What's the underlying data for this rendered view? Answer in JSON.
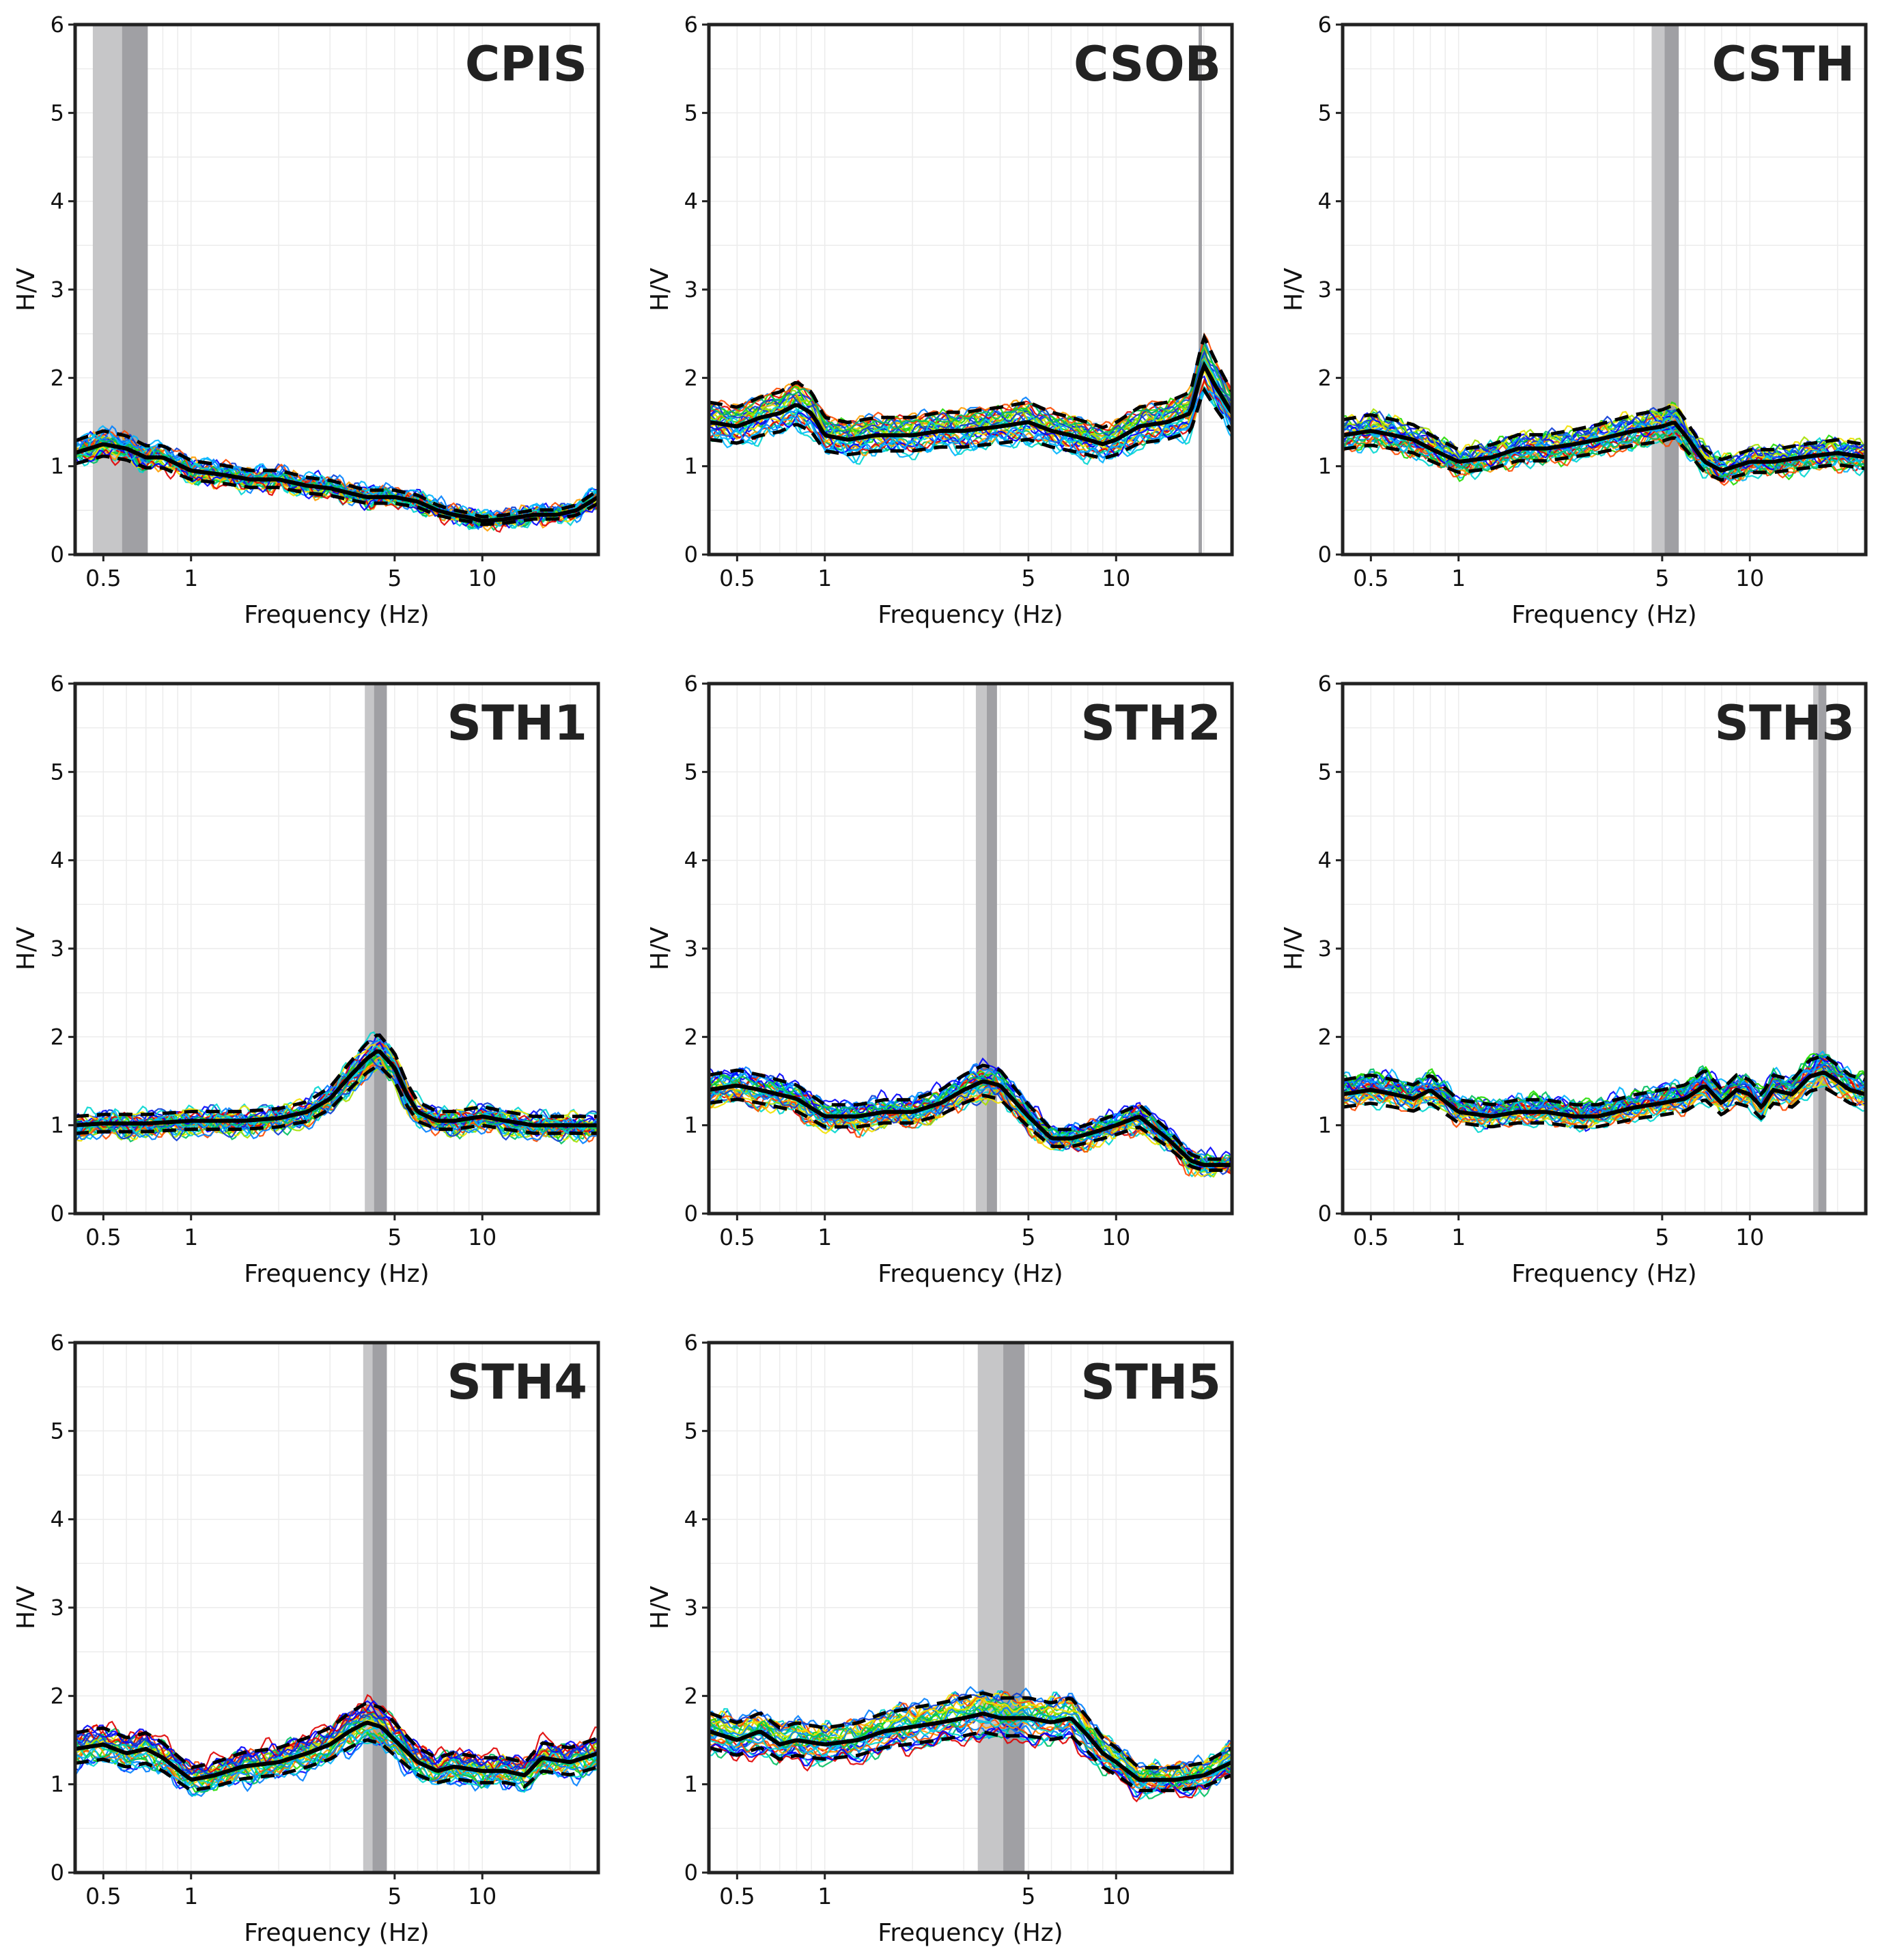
{
  "figure": {
    "colors": {
      "mean": "#000000",
      "std": "#000000",
      "band_outer": "#c6c6c8",
      "band_inner": "#a0a0a4",
      "frame": "#222222",
      "grid": "#ececec"
    },
    "window_palette": [
      "#0000ff",
      "#0b3bd6",
      "#0080ff",
      "#00b4ff",
      "#00d6d0",
      "#00c060",
      "#22dd00",
      "#a6e000",
      "#f2e100",
      "#ff9c00",
      "#ff4a00",
      "#e00000"
    ]
  },
  "chart_data": [
    {
      "type": "line",
      "title": "CPIS",
      "xlabel": "Frequency (Hz)",
      "ylabel": "H/V",
      "xscale": "log",
      "xlim": [
        0.4,
        25
      ],
      "ylim": [
        0,
        6
      ],
      "xticks": [
        0.5,
        1,
        5,
        10
      ],
      "xtick_labels": [
        "0.5",
        "1",
        "5",
        "10"
      ],
      "yticks": [
        0,
        1,
        2,
        3,
        4,
        5,
        6
      ],
      "ytick_labels": [
        "0",
        "1",
        "2",
        "3",
        "4",
        "5",
        "6"
      ],
      "peak_band": {
        "outer": [
          0.46,
          0.71
        ],
        "inner": [
          0.58,
          0.71
        ]
      },
      "mean_curve": {
        "f": [
          0.4,
          0.5,
          0.6,
          0.7,
          0.8,
          1.0,
          1.3,
          1.6,
          2.0,
          2.5,
          3.0,
          4.0,
          5.0,
          6.0,
          7.0,
          8.0,
          9.0,
          10.0,
          12.0,
          15.0,
          18.0,
          21.0,
          25.0
        ],
        "hv": [
          1.15,
          1.25,
          1.2,
          1.1,
          1.1,
          0.95,
          0.9,
          0.85,
          0.85,
          0.78,
          0.75,
          0.65,
          0.65,
          0.6,
          0.5,
          0.45,
          0.42,
          0.38,
          0.4,
          0.45,
          0.45,
          0.5,
          0.65
        ]
      },
      "std_factor": 1.12,
      "window_spread": 0.12,
      "window_count": 30
    },
    {
      "type": "line",
      "title": "CSOB",
      "xlabel": "Frequency (Hz)",
      "ylabel": "H/V",
      "xscale": "log",
      "xlim": [
        0.4,
        25
      ],
      "ylim": [
        0,
        6
      ],
      "xticks": [
        0.5,
        1,
        5,
        10
      ],
      "xtick_labels": [
        "0.5",
        "1",
        "5",
        "10"
      ],
      "yticks": [
        0,
        1,
        2,
        3,
        4,
        5,
        6
      ],
      "ytick_labels": [
        "0",
        "1",
        "2",
        "3",
        "4",
        "5",
        "6"
      ],
      "peak_band": {
        "outer": [
          19.2,
          19.7
        ],
        "inner": [
          19.2,
          19.7
        ]
      },
      "mean_curve": {
        "f": [
          0.4,
          0.5,
          0.6,
          0.7,
          0.8,
          0.9,
          1.0,
          1.2,
          1.5,
          2.0,
          2.5,
          3.0,
          4.0,
          5.0,
          6.0,
          7.0,
          8.0,
          9.0,
          10.0,
          12.0,
          15.0,
          18.0,
          20.0,
          22.0,
          25.0
        ],
        "hv": [
          1.5,
          1.45,
          1.55,
          1.6,
          1.7,
          1.6,
          1.35,
          1.3,
          1.35,
          1.35,
          1.4,
          1.4,
          1.45,
          1.5,
          1.4,
          1.35,
          1.3,
          1.25,
          1.3,
          1.45,
          1.5,
          1.6,
          2.15,
          1.9,
          1.6
        ]
      },
      "std_factor": 1.15,
      "window_spread": 0.17,
      "window_count": 30
    },
    {
      "type": "line",
      "title": "CSTH",
      "xlabel": "Frequency (Hz)",
      "ylabel": "H/V",
      "xscale": "log",
      "xlim": [
        0.4,
        25
      ],
      "ylim": [
        0,
        6
      ],
      "xticks": [
        0.5,
        1,
        5,
        10
      ],
      "xtick_labels": [
        "0.5",
        "1",
        "5",
        "10"
      ],
      "yticks": [
        0,
        1,
        2,
        3,
        4,
        5,
        6
      ],
      "ytick_labels": [
        "0",
        "1",
        "2",
        "3",
        "4",
        "5",
        "6"
      ],
      "peak_band": {
        "outer": [
          4.6,
          5.7
        ],
        "inner": [
          5.1,
          5.7
        ]
      },
      "mean_curve": {
        "f": [
          0.4,
          0.5,
          0.6,
          0.7,
          0.8,
          1.0,
          1.3,
          1.6,
          2.0,
          2.5,
          3.0,
          4.0,
          5.0,
          5.5,
          6.0,
          7.0,
          8.0,
          10.0,
          12.0,
          15.0,
          20.0,
          25.0
        ],
        "hv": [
          1.35,
          1.4,
          1.35,
          1.3,
          1.2,
          1.05,
          1.1,
          1.2,
          1.2,
          1.25,
          1.3,
          1.4,
          1.45,
          1.5,
          1.35,
          1.05,
          0.95,
          1.05,
          1.05,
          1.1,
          1.15,
          1.1
        ]
      },
      "std_factor": 1.13,
      "window_spread": 0.14,
      "window_count": 30
    },
    {
      "type": "line",
      "title": "STH1",
      "xlabel": "Frequency (Hz)",
      "ylabel": "H/V",
      "xscale": "log",
      "xlim": [
        0.4,
        25
      ],
      "ylim": [
        0,
        6
      ],
      "xticks": [
        0.5,
        1,
        5,
        10
      ],
      "xtick_labels": [
        "0.5",
        "1",
        "5",
        "10"
      ],
      "yticks": [
        0,
        1,
        2,
        3,
        4,
        5,
        6
      ],
      "ytick_labels": [
        "0",
        "1",
        "2",
        "3",
        "4",
        "5",
        "6"
      ],
      "peak_band": {
        "outer": [
          3.95,
          4.7
        ],
        "inner": [
          4.25,
          4.7
        ]
      },
      "mean_curve": {
        "f": [
          0.4,
          0.5,
          0.7,
          1.0,
          1.5,
          2.0,
          2.5,
          3.0,
          3.5,
          4.0,
          4.4,
          5.0,
          5.5,
          6.0,
          7.0,
          8.0,
          10.0,
          12.0,
          15.0,
          20.0,
          25.0
        ],
        "hv": [
          1.0,
          1.02,
          1.02,
          1.05,
          1.05,
          1.08,
          1.15,
          1.3,
          1.55,
          1.75,
          1.85,
          1.65,
          1.35,
          1.15,
          1.05,
          1.05,
          1.1,
          1.05,
          1.0,
          1.0,
          1.0
        ]
      },
      "std_factor": 1.1,
      "window_spread": 0.12,
      "window_count": 30
    },
    {
      "type": "line",
      "title": "STH2",
      "xlabel": "Frequency (Hz)",
      "ylabel": "H/V",
      "xscale": "log",
      "xlim": [
        0.4,
        25
      ],
      "ylim": [
        0,
        6
      ],
      "xticks": [
        0.5,
        1,
        5,
        10
      ],
      "xtick_labels": [
        "0.5",
        "1",
        "5",
        "10"
      ],
      "yticks": [
        0,
        1,
        2,
        3,
        4,
        5,
        6
      ],
      "ytick_labels": [
        "0",
        "1",
        "2",
        "3",
        "4",
        "5",
        "6"
      ],
      "peak_band": {
        "outer": [
          3.3,
          3.9
        ],
        "inner": [
          3.6,
          3.9
        ]
      },
      "mean_curve": {
        "f": [
          0.4,
          0.5,
          0.6,
          0.8,
          1.0,
          1.3,
          1.6,
          2.0,
          2.5,
          3.0,
          3.5,
          4.0,
          5.0,
          6.0,
          7.0,
          8.0,
          10.0,
          12.0,
          15.0,
          18.0,
          20.0,
          25.0
        ],
        "hv": [
          1.4,
          1.45,
          1.4,
          1.3,
          1.1,
          1.1,
          1.15,
          1.15,
          1.25,
          1.4,
          1.5,
          1.45,
          1.1,
          0.85,
          0.85,
          0.9,
          1.0,
          1.1,
          0.85,
          0.6,
          0.55,
          0.55
        ]
      },
      "std_factor": 1.12,
      "window_spread": 0.14,
      "window_count": 30
    },
    {
      "type": "line",
      "title": "STH3",
      "xlabel": "Frequency (Hz)",
      "ylabel": "H/V",
      "xscale": "log",
      "xlim": [
        0.4,
        25
      ],
      "ylim": [
        0,
        6
      ],
      "xticks": [
        0.5,
        1,
        5,
        10
      ],
      "xtick_labels": [
        "0.5",
        "1",
        "5",
        "10"
      ],
      "yticks": [
        0,
        1,
        2,
        3,
        4,
        5,
        6
      ],
      "ytick_labels": [
        "0",
        "1",
        "2",
        "3",
        "4",
        "5",
        "6"
      ],
      "peak_band": {
        "outer": [
          16.5,
          18.3
        ],
        "inner": [
          17.2,
          18.3
        ]
      },
      "mean_curve": {
        "f": [
          0.4,
          0.5,
          0.6,
          0.7,
          0.8,
          1.0,
          1.3,
          1.6,
          2.0,
          2.5,
          3.0,
          4.0,
          5.0,
          6.0,
          7.0,
          8.0,
          9.0,
          10.0,
          11.0,
          12.0,
          14.0,
          16.0,
          18.0,
          20.0,
          22.0,
          25.0
        ],
        "hv": [
          1.35,
          1.4,
          1.35,
          1.3,
          1.4,
          1.15,
          1.1,
          1.15,
          1.15,
          1.1,
          1.1,
          1.2,
          1.25,
          1.3,
          1.45,
          1.25,
          1.4,
          1.35,
          1.2,
          1.4,
          1.35,
          1.55,
          1.6,
          1.5,
          1.4,
          1.35
        ]
      },
      "std_factor": 1.12,
      "window_spread": 0.13,
      "window_count": 30
    },
    {
      "type": "line",
      "title": "STH4",
      "xlabel": "Frequency (Hz)",
      "ylabel": "H/V",
      "xscale": "log",
      "xlim": [
        0.4,
        25
      ],
      "ylim": [
        0,
        6
      ],
      "xticks": [
        0.5,
        1,
        5,
        10
      ],
      "xtick_labels": [
        "0.5",
        "1",
        "5",
        "10"
      ],
      "yticks": [
        0,
        1,
        2,
        3,
        4,
        5,
        6
      ],
      "ytick_labels": [
        "0",
        "1",
        "2",
        "3",
        "4",
        "5",
        "6"
      ],
      "peak_band": {
        "outer": [
          3.9,
          4.7
        ],
        "inner": [
          4.2,
          4.7
        ]
      },
      "mean_curve": {
        "f": [
          0.4,
          0.5,
          0.6,
          0.7,
          0.8,
          1.0,
          1.2,
          1.5,
          2.0,
          2.5,
          3.0,
          3.5,
          4.0,
          4.5,
          5.0,
          6.0,
          7.0,
          8.0,
          10.0,
          12.0,
          14.0,
          16.0,
          20.0,
          25.0
        ],
        "hv": [
          1.4,
          1.45,
          1.35,
          1.4,
          1.3,
          1.05,
          1.1,
          1.2,
          1.25,
          1.35,
          1.45,
          1.6,
          1.7,
          1.65,
          1.5,
          1.25,
          1.15,
          1.2,
          1.15,
          1.15,
          1.1,
          1.3,
          1.25,
          1.35
        ]
      },
      "std_factor": 1.13,
      "window_spread": 0.15,
      "window_count": 30
    },
    {
      "type": "line",
      "title": "STH5",
      "xlabel": "Frequency (Hz)",
      "ylabel": "H/V",
      "xscale": "log",
      "xlim": [
        0.4,
        25
      ],
      "ylim": [
        0,
        6
      ],
      "xticks": [
        0.5,
        1,
        5,
        10
      ],
      "xtick_labels": [
        "0.5",
        "1",
        "5",
        "10"
      ],
      "yticks": [
        0,
        1,
        2,
        3,
        4,
        5,
        6
      ],
      "ytick_labels": [
        "0",
        "1",
        "2",
        "3",
        "4",
        "5",
        "6"
      ],
      "peak_band": {
        "outer": [
          3.35,
          4.85
        ],
        "inner": [
          4.1,
          4.85
        ]
      },
      "mean_curve": {
        "f": [
          0.4,
          0.5,
          0.6,
          0.7,
          0.8,
          1.0,
          1.3,
          1.6,
          2.0,
          2.5,
          3.0,
          3.5,
          4.0,
          5.0,
          6.0,
          7.0,
          8.0,
          9.0,
          10.0,
          12.0,
          14.0,
          16.0,
          20.0,
          25.0
        ],
        "hv": [
          1.6,
          1.5,
          1.6,
          1.45,
          1.5,
          1.45,
          1.5,
          1.6,
          1.65,
          1.7,
          1.75,
          1.8,
          1.75,
          1.75,
          1.7,
          1.75,
          1.55,
          1.35,
          1.25,
          1.05,
          1.05,
          1.05,
          1.1,
          1.25
        ]
      },
      "std_factor": 1.13,
      "window_spread": 0.16,
      "window_count": 30
    }
  ]
}
